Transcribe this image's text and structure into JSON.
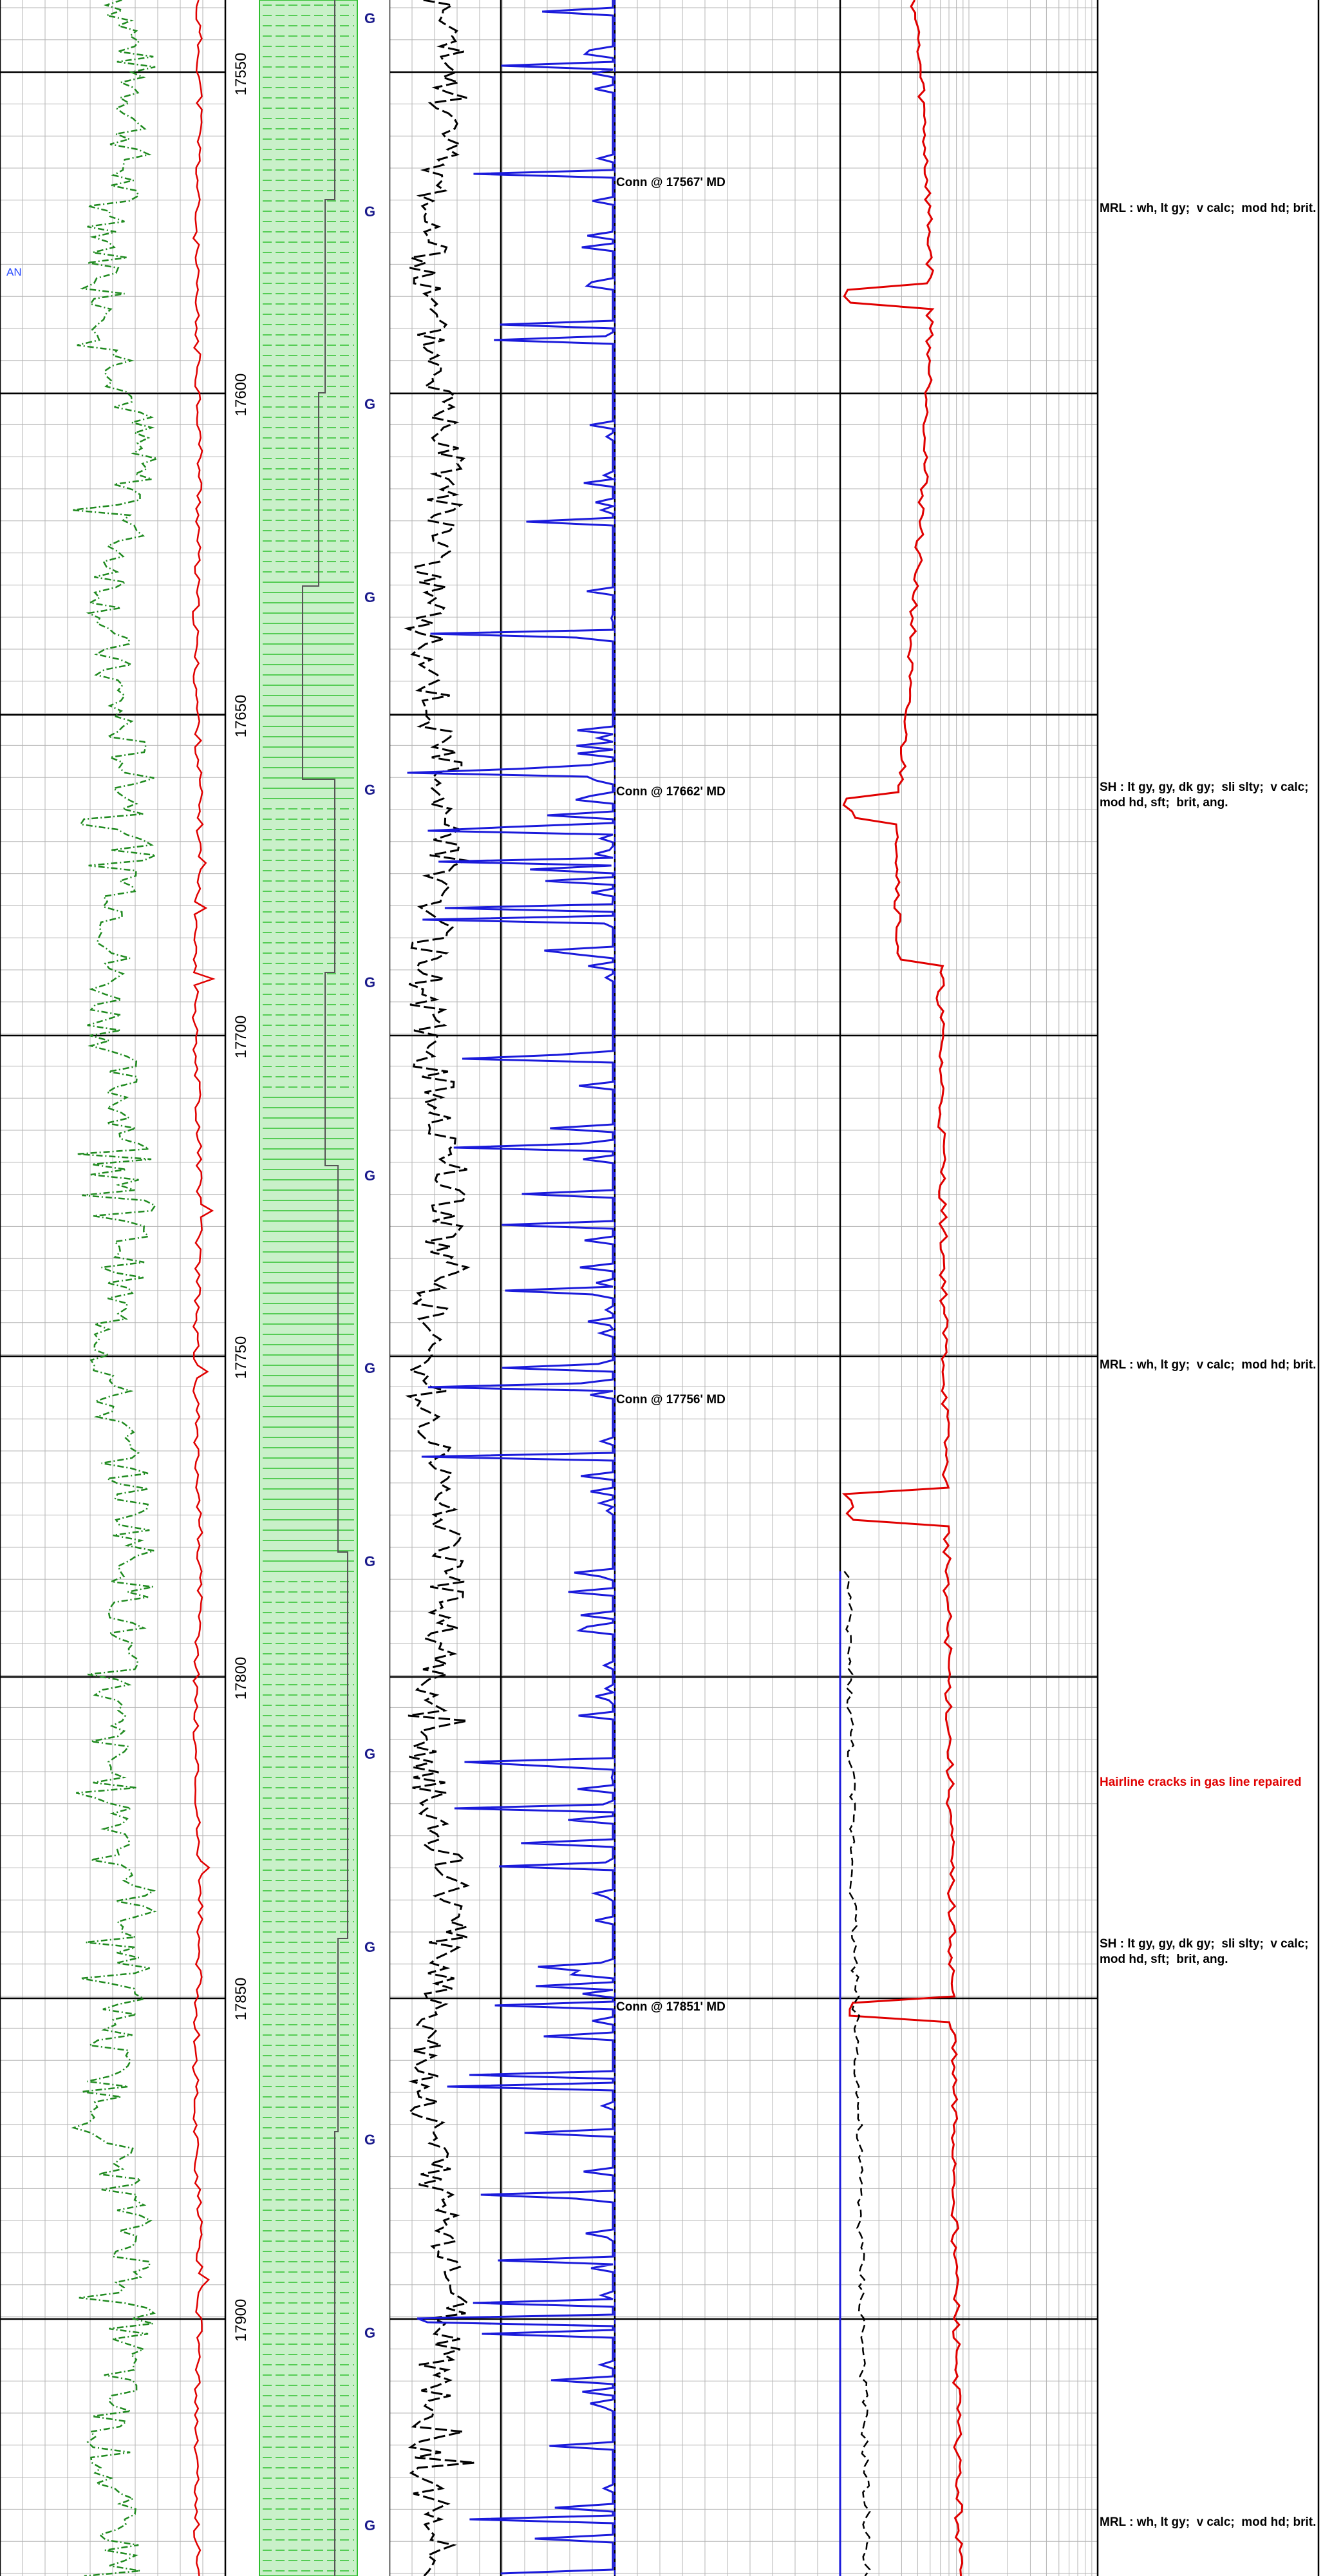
{
  "depth_track": {
    "depth_labels": [
      "17550",
      "17600",
      "17650",
      "17700",
      "17750",
      "17800",
      "17850",
      "17900"
    ],
    "gas_marker": "G"
  },
  "track1": {
    "annotation": "AN"
  },
  "connections": [
    "Conn @ 17567' MD",
    "Conn @ 17662' MD",
    "Conn @ 17756' MD",
    "Conn @ 17851' MD"
  ],
  "remarks": [
    {
      "text": "MRL : wh, lt gy;  v calc;  mod hd; brit.",
      "color": "#000000"
    },
    {
      "text": "SH : lt gy, gy, dk gy;  sli slty;  v calc;  mod hd, sft;  brit, ang.",
      "color": "#000000"
    },
    {
      "text": "MRL : wh, lt gy;  v calc;  mod hd; brit.",
      "color": "#000000"
    },
    {
      "text": "Hairline cracks in gas line repaired",
      "color": "#e00000"
    },
    {
      "text": "SH : lt gy, gy, dk gy;  sli slty;  v calc;  mod hd, sft;  brit, ang.",
      "color": "#000000"
    },
    {
      "text": "MRL : wh, lt gy;  v calc;  mod hd; brit.",
      "color": "#000000"
    }
  ],
  "colors": {
    "gamma_ray": "#1f8a1f",
    "rop": "#e00000",
    "lithology_fill": "#c9f0c9",
    "lithology_line": "#2fbf2f",
    "gas_total": "#1a1adb",
    "gas_chromatograph": "#000000",
    "dexp": "#e00000",
    "remark_alert": "#e00000"
  }
}
